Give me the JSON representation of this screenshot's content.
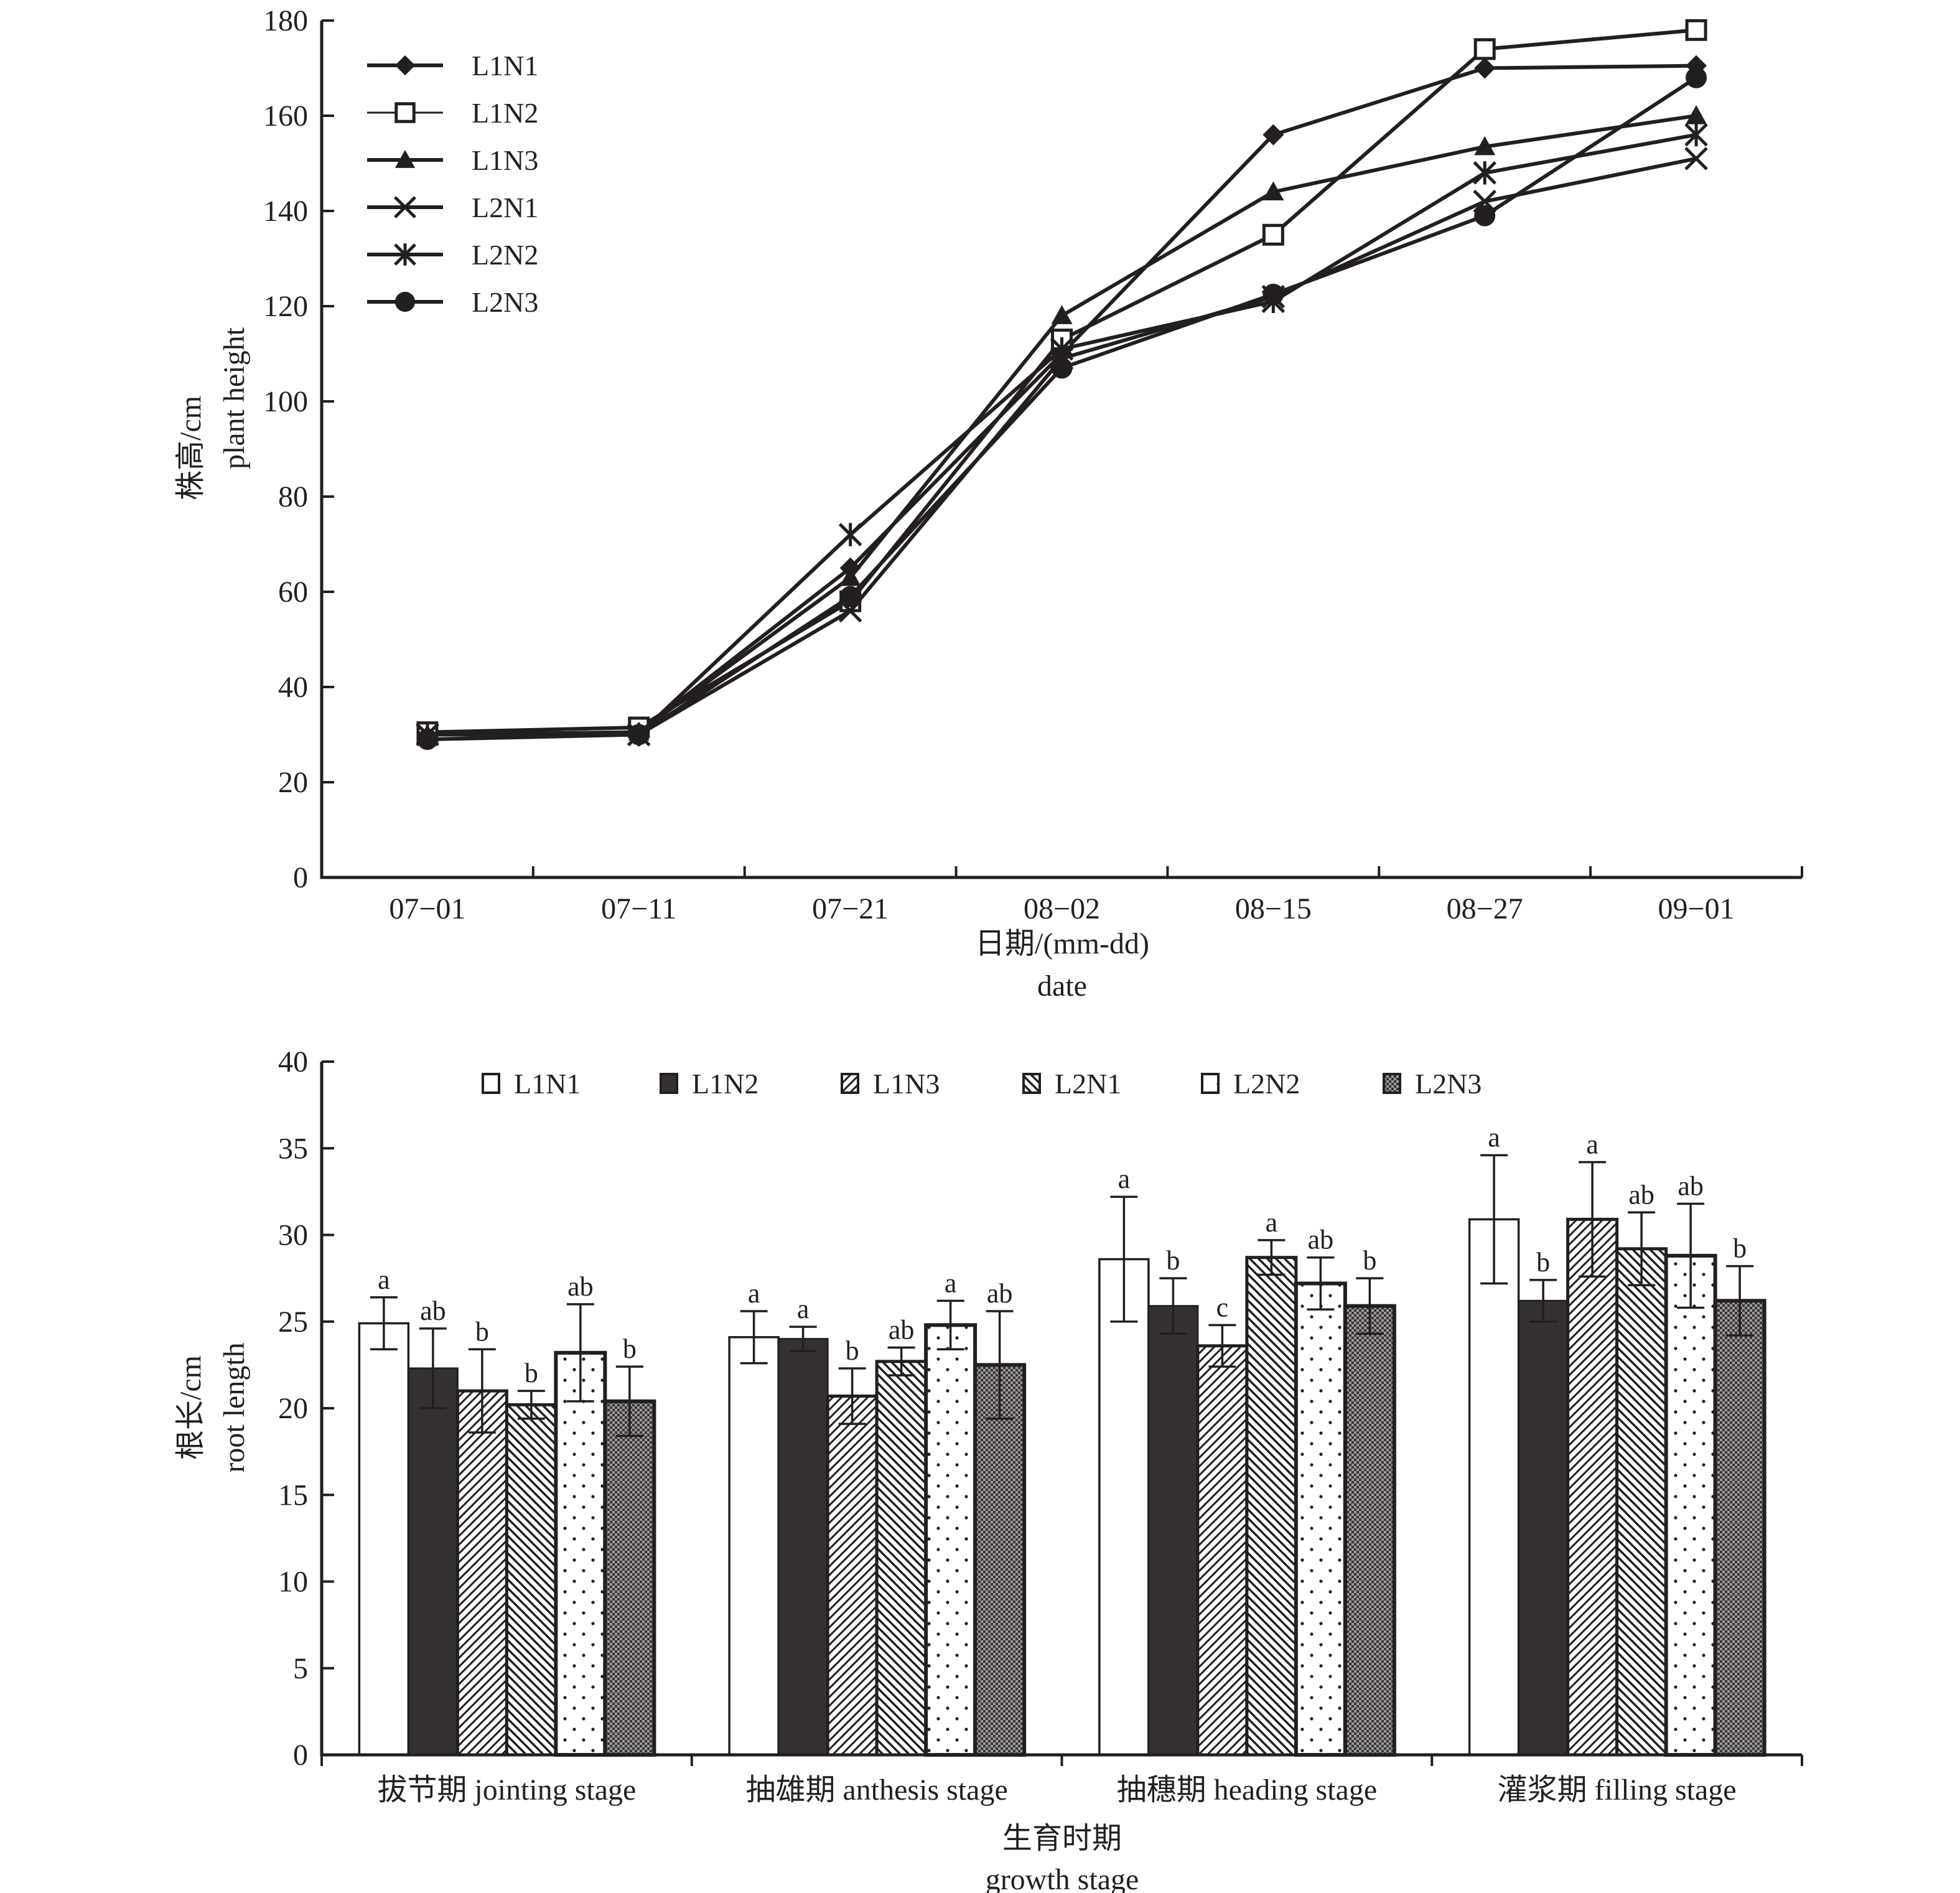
{
  "chart_data": [
    {
      "type": "line",
      "title": "",
      "xlabel": "日期/(mm-dd)",
      "xlabel_en": "date",
      "ylabel": "株高/cm",
      "ylabel_en": "plant height",
      "ylim": [
        0,
        180
      ],
      "yticks": [
        0,
        20,
        40,
        60,
        80,
        100,
        120,
        140,
        160,
        180
      ],
      "categories": [
        "07−01",
        "07−11",
        "07−21",
        "08−02",
        "08−15",
        "08−27",
        "09−01"
      ],
      "grid": false,
      "legend_position": "top-left",
      "series": [
        {
          "name": "L1N1",
          "marker": "diamond",
          "values": [
            30,
            30.5,
            65,
            110,
            156,
            170,
            170.5
          ]
        },
        {
          "name": "L1N2",
          "marker": "open-square",
          "values": [
            30.5,
            31.5,
            58,
            113,
            135,
            174,
            178
          ]
        },
        {
          "name": "L1N3",
          "marker": "triangle",
          "values": [
            30,
            30.5,
            63,
            118,
            144,
            153.5,
            160
          ]
        },
        {
          "name": "L2N1",
          "marker": "x",
          "values": [
            30,
            30,
            56,
            109,
            122,
            142,
            151
          ]
        },
        {
          "name": "L2N2",
          "marker": "asterisk",
          "values": [
            30,
            30,
            72,
            111,
            121,
            148,
            156
          ]
        },
        {
          "name": "L2N3",
          "marker": "circle",
          "values": [
            29,
            30,
            59,
            107,
            122.5,
            139,
            168
          ]
        }
      ]
    },
    {
      "type": "bar",
      "title": "",
      "xlabel": "生育时期",
      "xlabel_en": "growth stage",
      "ylabel": "根长/cm",
      "ylabel_en": "root length",
      "ylim": [
        0,
        40
      ],
      "yticks": [
        0,
        5,
        10,
        15,
        20,
        25,
        30,
        35,
        40
      ],
      "categories": [
        "拔节期 jointing stage",
        "抽雄期 anthesis stage",
        "抽穗期 heading stage",
        "灌浆期 filling stage"
      ],
      "grid": false,
      "legend_position": "top",
      "series": [
        {
          "name": "L1N1",
          "pattern": "white",
          "values": [
            24.9,
            24.1,
            28.6,
            30.9
          ],
          "err": [
            1.5,
            1.5,
            3.6,
            3.7
          ],
          "labels": [
            "a",
            "a",
            "a",
            "a"
          ]
        },
        {
          "name": "L1N2",
          "pattern": "solid-dark",
          "values": [
            22.3,
            24.0,
            25.9,
            26.2
          ],
          "err": [
            2.3,
            0.7,
            1.6,
            1.2
          ],
          "labels": [
            "ab",
            "a",
            "b",
            "b"
          ]
        },
        {
          "name": "L1N3",
          "pattern": "diagonal-up",
          "values": [
            21.0,
            20.7,
            23.6,
            30.9
          ],
          "err": [
            2.4,
            1.6,
            1.2,
            3.3
          ],
          "labels": [
            "b",
            "b",
            "c",
            "a"
          ]
        },
        {
          "name": "L2N1",
          "pattern": "diagonal-down",
          "values": [
            20.2,
            22.7,
            28.7,
            29.2
          ],
          "err": [
            0.8,
            0.8,
            1.0,
            2.1
          ],
          "labels": [
            "b",
            "ab",
            "a",
            "ab"
          ]
        },
        {
          "name": "L2N2",
          "pattern": "dots",
          "values": [
            23.2,
            24.8,
            27.2,
            28.8
          ],
          "err": [
            2.8,
            1.4,
            1.5,
            3.0
          ],
          "labels": [
            "ab",
            "a",
            "ab",
            "ab"
          ]
        },
        {
          "name": "L2N3",
          "pattern": "crosshatch",
          "values": [
            20.4,
            22.5,
            25.9,
            26.2
          ],
          "err": [
            2.0,
            3.1,
            1.6,
            2.0
          ],
          "labels": [
            "b",
            "ab",
            "b",
            "b"
          ]
        }
      ]
    }
  ]
}
